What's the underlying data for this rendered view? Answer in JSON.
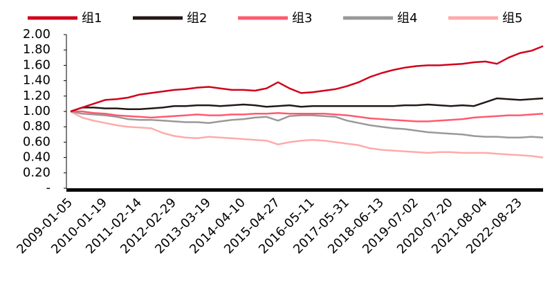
{
  "chart_data": {
    "type": "line",
    "categories": [
      "2009-01-05",
      null,
      null,
      "2010-01-19",
      null,
      null,
      "2011-02-14",
      null,
      null,
      "2012-02-29",
      null,
      null,
      "2013-03-19",
      null,
      null,
      "2014-04-10",
      null,
      null,
      "2015-04-27",
      null,
      null,
      "2016-05-11",
      null,
      null,
      "2017-05-31",
      null,
      null,
      "2018-06-13",
      null,
      null,
      "2019-07-02",
      null,
      null,
      "2020-07-20",
      null,
      null,
      "2021-08-04",
      null,
      null,
      "2022-08-23",
      null,
      null
    ],
    "series": [
      {
        "name": "组1",
        "color": "#d0021b",
        "values": [
          1.0,
          1.05,
          1.1,
          1.15,
          1.16,
          1.18,
          1.22,
          1.24,
          1.26,
          1.28,
          1.29,
          1.31,
          1.32,
          1.3,
          1.28,
          1.28,
          1.27,
          1.3,
          1.38,
          1.3,
          1.24,
          1.25,
          1.27,
          1.29,
          1.33,
          1.38,
          1.45,
          1.5,
          1.54,
          1.57,
          1.59,
          1.6,
          1.6,
          1.61,
          1.62,
          1.64,
          1.65,
          1.62,
          1.7,
          1.76,
          1.79,
          1.85
        ]
      },
      {
        "name": "组2",
        "color": "#231815",
        "values": [
          1.0,
          1.05,
          1.05,
          1.04,
          1.04,
          1.03,
          1.03,
          1.04,
          1.05,
          1.07,
          1.07,
          1.08,
          1.08,
          1.07,
          1.08,
          1.09,
          1.08,
          1.06,
          1.07,
          1.08,
          1.06,
          1.07,
          1.07,
          1.07,
          1.07,
          1.07,
          1.07,
          1.07,
          1.07,
          1.08,
          1.08,
          1.09,
          1.08,
          1.07,
          1.08,
          1.07,
          1.12,
          1.17,
          1.16,
          1.15,
          1.16,
          1.17
        ]
      },
      {
        "name": "组3",
        "color": "#ff5a6e",
        "values": [
          1.0,
          1.0,
          0.98,
          0.97,
          0.95,
          0.94,
          0.93,
          0.92,
          0.93,
          0.94,
          0.95,
          0.96,
          0.95,
          0.95,
          0.96,
          0.96,
          0.97,
          0.97,
          0.98,
          0.97,
          0.97,
          0.97,
          0.97,
          0.96,
          0.95,
          0.93,
          0.91,
          0.9,
          0.89,
          0.88,
          0.87,
          0.87,
          0.88,
          0.89,
          0.9,
          0.92,
          0.93,
          0.94,
          0.95,
          0.95,
          0.96,
          0.97
        ]
      },
      {
        "name": "组4",
        "color": "#999999",
        "values": [
          1.0,
          0.97,
          0.96,
          0.95,
          0.93,
          0.9,
          0.89,
          0.89,
          0.88,
          0.87,
          0.86,
          0.86,
          0.85,
          0.87,
          0.89,
          0.9,
          0.92,
          0.93,
          0.88,
          0.94,
          0.95,
          0.95,
          0.94,
          0.93,
          0.88,
          0.85,
          0.82,
          0.8,
          0.78,
          0.77,
          0.75,
          0.73,
          0.72,
          0.71,
          0.7,
          0.68,
          0.67,
          0.67,
          0.66,
          0.66,
          0.67,
          0.66
        ]
      },
      {
        "name": "组5",
        "color": "#ffaaaa",
        "values": [
          1.0,
          0.92,
          0.88,
          0.85,
          0.82,
          0.8,
          0.79,
          0.78,
          0.72,
          0.68,
          0.66,
          0.65,
          0.67,
          0.66,
          0.65,
          0.64,
          0.63,
          0.62,
          0.57,
          0.6,
          0.62,
          0.63,
          0.62,
          0.6,
          0.58,
          0.56,
          0.52,
          0.5,
          0.49,
          0.48,
          0.47,
          0.46,
          0.47,
          0.47,
          0.46,
          0.46,
          0.46,
          0.45,
          0.44,
          0.43,
          0.42,
          0.4
        ]
      }
    ],
    "ylim": [
      0,
      2
    ],
    "yticks": [
      {
        "value": 0,
        "label": "-"
      },
      {
        "value": 0.2,
        "label": "0.20"
      },
      {
        "value": 0.4,
        "label": "0.40"
      },
      {
        "value": 0.6,
        "label": "0.60"
      },
      {
        "value": 0.8,
        "label": "0.80"
      },
      {
        "value": 1,
        "label": "1.00"
      },
      {
        "value": 1.2,
        "label": "1.20"
      },
      {
        "value": 1.4,
        "label": "1.40"
      },
      {
        "value": 1.6,
        "label": "1.60"
      },
      {
        "value": 1.8,
        "label": "1.80"
      },
      {
        "value": 2,
        "label": "2.00"
      }
    ],
    "legend": "top"
  }
}
